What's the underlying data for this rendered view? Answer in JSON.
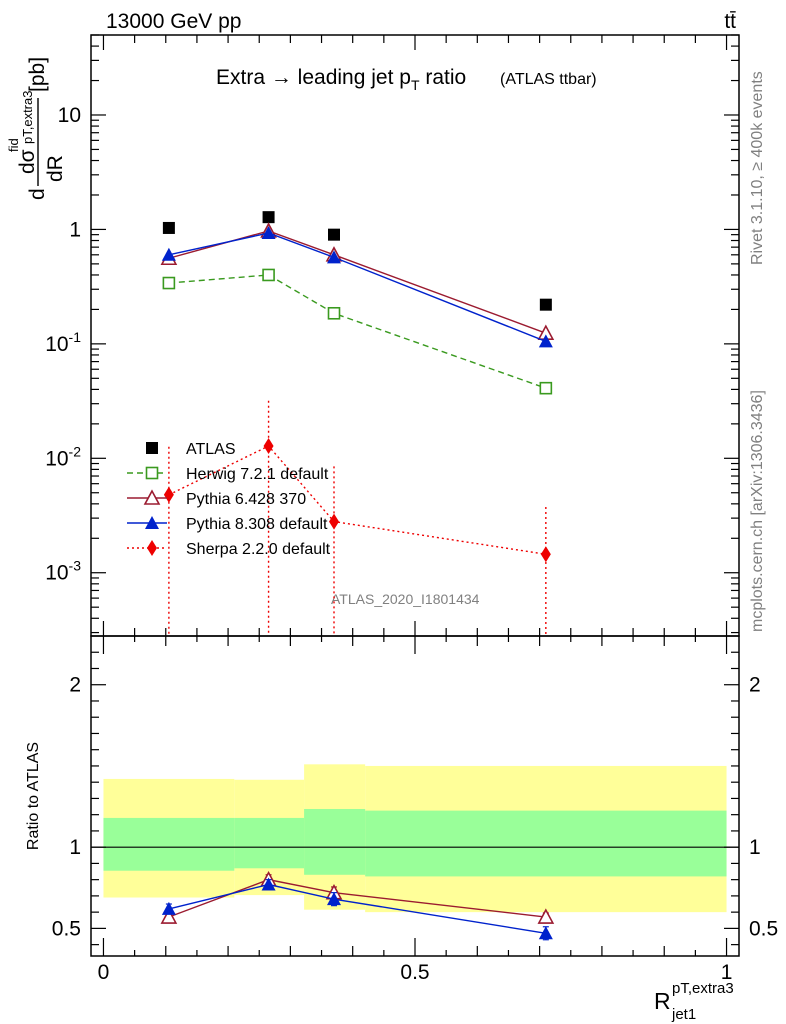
{
  "header": {
    "left_label": "13000 GeV pp",
    "right_label": "tt̄"
  },
  "side_text": {
    "rivet": "Rivet 3.1.10, ≥ 400k events",
    "mcplots": "mcplots.cern.ch [arXiv:1306.3436]"
  },
  "watermark": "ATLAS_2020_I1801434",
  "colors": {
    "atlas": "#000000",
    "herwig": "#3a9a1f",
    "pythia6": "#9b1b30",
    "pythia8": "#0022cc",
    "sherpa": "#ee0000",
    "band_outer": "#ffff99",
    "band_inner": "#99ff99"
  },
  "chart_data": [
    {
      "type": "scatter",
      "panel": "main",
      "title": "Extra → leading jet pT ratio",
      "title_note": "(ATLAS ttbar)",
      "ylabel": "dσfid/dRpT,extra3jet1 [pb]",
      "log_y": true,
      "ylim": [
        0.00028,
        50
      ],
      "xlim": [
        -0.02,
        1.02
      ],
      "y_ticks": [
        {
          "value": 0.001,
          "label": "10^-3"
        },
        {
          "value": 0.01,
          "label": "10^-2"
        },
        {
          "value": 0.1,
          "label": "10^-1"
        },
        {
          "value": 1,
          "label": "1"
        },
        {
          "value": 10,
          "label": "10"
        }
      ],
      "series": [
        {
          "name": "ATLAS",
          "key": "atlas",
          "marker": "square-filled",
          "style": "none",
          "x": [
            0.105,
            0.265,
            0.37,
            0.71
          ],
          "y": [
            1.03,
            1.28,
            0.9,
            0.22
          ]
        },
        {
          "name": "Herwig 7.2.1 default",
          "key": "herwig",
          "marker": "square-open",
          "style": "dashed",
          "x": [
            0.105,
            0.265,
            0.37,
            0.71
          ],
          "y": [
            0.34,
            0.4,
            0.185,
            0.041
          ]
        },
        {
          "name": "Pythia 6.428 370",
          "key": "pythia6",
          "marker": "triangle-open",
          "style": "solid",
          "x": [
            0.105,
            0.265,
            0.37,
            0.71
          ],
          "y": [
            0.56,
            0.97,
            0.6,
            0.124
          ]
        },
        {
          "name": "Pythia 8.308 default",
          "key": "pythia8",
          "marker": "triangle-filled",
          "style": "solid",
          "x": [
            0.105,
            0.265,
            0.37,
            0.71
          ],
          "y": [
            0.6,
            0.93,
            0.57,
            0.105
          ]
        },
        {
          "name": "Sherpa 2.2.0 default",
          "key": "sherpa",
          "marker": "diamond-filled",
          "style": "dotted",
          "x": [
            0.105,
            0.265,
            0.37,
            0.71
          ],
          "y": [
            0.0048,
            0.0128,
            0.0028,
            0.00145
          ],
          "err_low": [
            0.0048,
            0.0128,
            0.0028,
            0.00145
          ],
          "err_high": [
            0.0078,
            0.019,
            0.0057,
            0.0023
          ]
        }
      ],
      "legend_position": "lower-left"
    },
    {
      "type": "line",
      "panel": "ratio",
      "xlabel": "RpT,extra3jet1",
      "ylabel": "Ratio to ATLAS",
      "xlim": [
        -0.02,
        1.02
      ],
      "ylim": [
        0.33,
        2.3
      ],
      "x_ticks": [
        0,
        0.5,
        1
      ],
      "y_ticks": [
        0.5,
        1,
        2
      ],
      "reference_line": 1,
      "bands": {
        "edges": [
          0,
          0.21,
          0.322,
          0.42,
          1
        ],
        "outer_low": [
          0.69,
          0.705,
          0.615,
          0.6
        ],
        "outer_high": [
          1.42,
          1.415,
          1.51,
          1.5
        ],
        "inner_low": [
          0.855,
          0.87,
          0.83,
          0.82
        ],
        "inner_high": [
          1.18,
          1.18,
          1.235,
          1.225
        ]
      },
      "series": [
        {
          "name": "Pythia 6.428 370",
          "key": "pythia6",
          "marker": "triangle-open",
          "style": "solid",
          "x": [
            0.105,
            0.265,
            0.37,
            0.71
          ],
          "y": [
            0.57,
            0.8,
            0.72,
            0.57
          ],
          "err": [
            0.015,
            0.03,
            0.035,
            0.025
          ]
        },
        {
          "name": "Pythia 8.308 default",
          "key": "pythia8",
          "marker": "triangle-filled",
          "style": "solid",
          "x": [
            0.105,
            0.265,
            0.37,
            0.71
          ],
          "y": [
            0.62,
            0.77,
            0.68,
            0.47
          ],
          "err": [
            0.03,
            0.03,
            0.04,
            0.04
          ]
        }
      ]
    }
  ]
}
